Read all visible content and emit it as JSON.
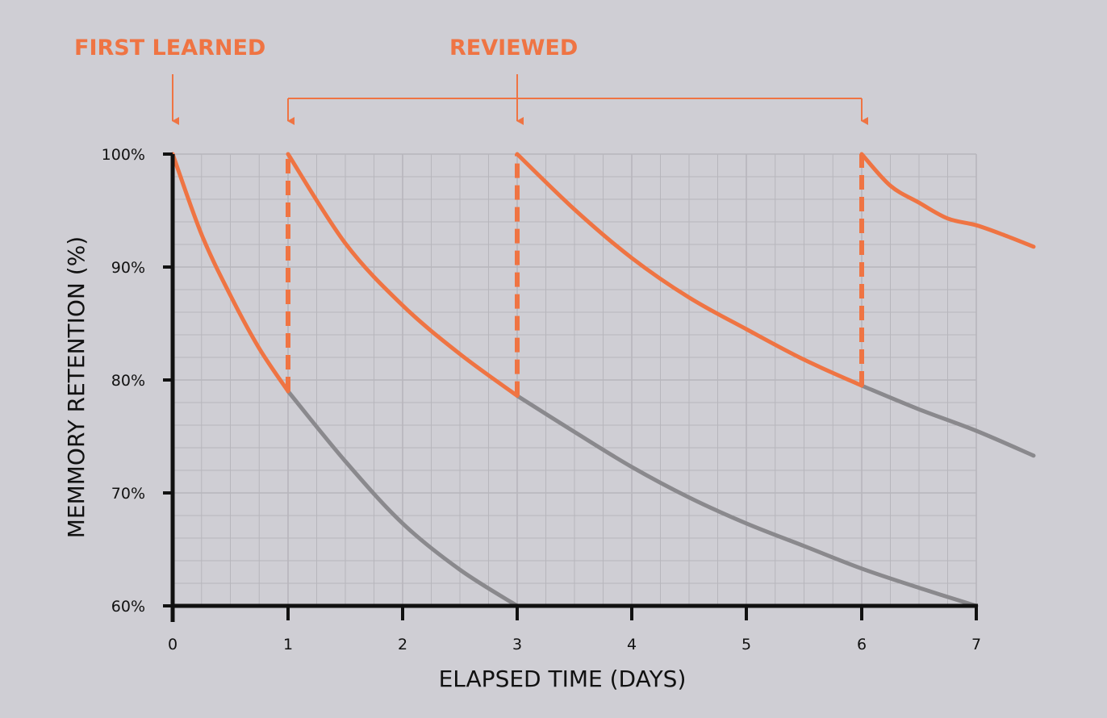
{
  "chart_data": {
    "type": "line",
    "xlabel": "ELAPSED TIME (DAYS)",
    "ylabel": "MEMMORY RETENTION (%)",
    "xlim": [
      0,
      7
    ],
    "ylim": [
      60,
      100
    ],
    "x_ticks": [
      {
        "value": 0,
        "label": "0"
      },
      {
        "value": 1,
        "label": "1"
      },
      {
        "value": 2,
        "label": "2"
      },
      {
        "value": 3,
        "label": "3"
      },
      {
        "value": 4,
        "label": "4"
      },
      {
        "value": 5,
        "label": "5"
      },
      {
        "value": 6,
        "label": "6"
      },
      {
        "value": 7,
        "label": "7"
      }
    ],
    "y_ticks": [
      {
        "value": 100,
        "label": "100%"
      },
      {
        "value": 90,
        "label": "90%"
      },
      {
        "value": 80,
        "label": "80%"
      },
      {
        "value": 70,
        "label": "70%"
      },
      {
        "value": 60,
        "label": "60%"
      }
    ],
    "grid": true,
    "colors": {
      "review": "#ef7443",
      "decay": "#8a898d",
      "axis": "#111111",
      "grid": "#b7b6bc"
    },
    "annotations": {
      "first_learned": {
        "label": "FIRST LEARNED",
        "x": 0
      },
      "reviewed": {
        "label": "REVIEWED",
        "x": [
          1,
          3,
          6
        ]
      }
    },
    "review_curves": [
      {
        "x": [
          0,
          0.25,
          0.5,
          0.75,
          1
        ],
        "y": [
          100,
          92.9,
          87.5,
          82.8,
          79
        ]
      },
      {
        "x": [
          1,
          1.5,
          2,
          2.5,
          3
        ],
        "y": [
          100,
          92.1,
          86.6,
          82.3,
          78.6
        ]
      },
      {
        "x": [
          3,
          3.5,
          4,
          4.5,
          5,
          5.5,
          6
        ],
        "y": [
          100,
          95.1,
          90.8,
          87.3,
          84.5,
          81.8,
          79.5
        ]
      },
      {
        "x": [
          6,
          6.25,
          6.5,
          6.75,
          7,
          7.25,
          7.5
        ],
        "y": [
          100,
          97.2,
          95.7,
          94.3,
          93.7,
          92.8,
          91.8
        ]
      }
    ],
    "review_drops": [
      {
        "x": 1,
        "from": 79,
        "to": 100
      },
      {
        "x": 3,
        "from": 78.6,
        "to": 100
      },
      {
        "x": 6,
        "from": 79.5,
        "to": 100
      }
    ],
    "decay_curves": [
      {
        "x": [
          1,
          1.5,
          2,
          2.5,
          3
        ],
        "y": [
          79,
          72.8,
          67.3,
          63.2,
          60
        ]
      },
      {
        "x": [
          3,
          3.5,
          4,
          4.5,
          5,
          5.5,
          6,
          6.5,
          7
        ],
        "y": [
          78.6,
          75.4,
          72.3,
          69.6,
          67.3,
          65.3,
          63.3,
          61.6,
          60
        ]
      },
      {
        "x": [
          6,
          6.5,
          7,
          7.5
        ],
        "y": [
          79.5,
          77.4,
          75.5,
          73.3
        ]
      }
    ]
  }
}
